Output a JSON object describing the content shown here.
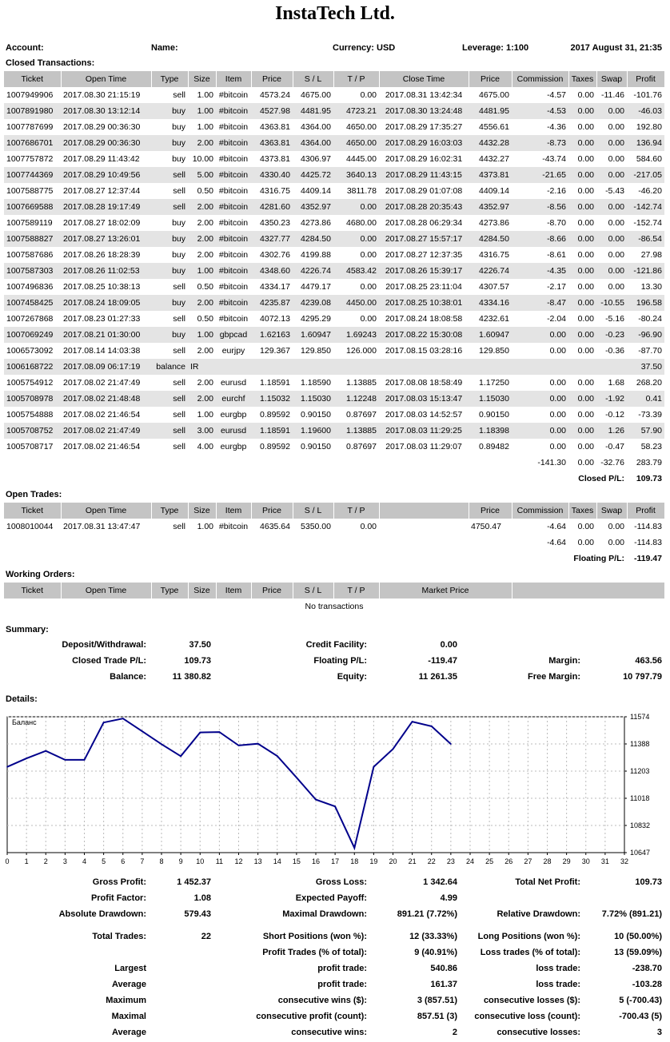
{
  "company": "InstaTech Ltd.",
  "header": {
    "account_label": "Account:",
    "name_label": "Name:",
    "currency_label": "Currency: USD",
    "leverage_label": "Leverage: 1:100",
    "date": "2017 August 31, 21:35"
  },
  "closed": {
    "title": "Closed Transactions:",
    "columns": [
      "Ticket",
      "Open Time",
      "Type",
      "Size",
      "Item",
      "Price",
      "S / L",
      "T / P",
      "Close Time",
      "Price",
      "Commission",
      "Taxes",
      "Swap",
      "Profit"
    ],
    "rows": [
      [
        "1007949906",
        "2017.08.30 21:15:19",
        "sell",
        "1.00",
        "#bitcoin",
        "4573.24",
        "4675.00",
        "0.00",
        "2017.08.31 13:42:34",
        "4675.00",
        "-4.57",
        "0.00",
        "-11.46",
        "-101.76"
      ],
      [
        "1007891980",
        "2017.08.30 13:12:14",
        "buy",
        "1.00",
        "#bitcoin",
        "4527.98",
        "4481.95",
        "4723.21",
        "2017.08.30 13:24:48",
        "4481.95",
        "-4.53",
        "0.00",
        "0.00",
        "-46.03"
      ],
      [
        "1007787699",
        "2017.08.29 00:36:30",
        "buy",
        "1.00",
        "#bitcoin",
        "4363.81",
        "4364.00",
        "4650.00",
        "2017.08.29 17:35:27",
        "4556.61",
        "-4.36",
        "0.00",
        "0.00",
        "192.80"
      ],
      [
        "1007686701",
        "2017.08.29 00:36:30",
        "buy",
        "2.00",
        "#bitcoin",
        "4363.81",
        "4364.00",
        "4650.00",
        "2017.08.29 16:03:03",
        "4432.28",
        "-8.73",
        "0.00",
        "0.00",
        "136.94"
      ],
      [
        "1007757872",
        "2017.08.29 11:43:42",
        "buy",
        "10.00",
        "#bitcoin",
        "4373.81",
        "4306.97",
        "4445.00",
        "2017.08.29 16:02:31",
        "4432.27",
        "-43.74",
        "0.00",
        "0.00",
        "584.60"
      ],
      [
        "1007744369",
        "2017.08.29 10:49:56",
        "sell",
        "5.00",
        "#bitcoin",
        "4330.40",
        "4425.72",
        "3640.13",
        "2017.08.29 11:43:15",
        "4373.81",
        "-21.65",
        "0.00",
        "0.00",
        "-217.05"
      ],
      [
        "1007588775",
        "2017.08.27 12:37:44",
        "sell",
        "0.50",
        "#bitcoin",
        "4316.75",
        "4409.14",
        "3811.78",
        "2017.08.29 01:07:08",
        "4409.14",
        "-2.16",
        "0.00",
        "-5.43",
        "-46.20"
      ],
      [
        "1007669588",
        "2017.08.28 19:17:49",
        "sell",
        "2.00",
        "#bitcoin",
        "4281.60",
        "4352.97",
        "0.00",
        "2017.08.28 20:35:43",
        "4352.97",
        "-8.56",
        "0.00",
        "0.00",
        "-142.74"
      ],
      [
        "1007589119",
        "2017.08.27 18:02:09",
        "buy",
        "2.00",
        "#bitcoin",
        "4350.23",
        "4273.86",
        "4680.00",
        "2017.08.28 06:29:34",
        "4273.86",
        "-8.70",
        "0.00",
        "0.00",
        "-152.74"
      ],
      [
        "1007588827",
        "2017.08.27 13:26:01",
        "buy",
        "2.00",
        "#bitcoin",
        "4327.77",
        "4284.50",
        "0.00",
        "2017.08.27 15:57:17",
        "4284.50",
        "-8.66",
        "0.00",
        "0.00",
        "-86.54"
      ],
      [
        "1007587686",
        "2017.08.26 18:28:39",
        "buy",
        "2.00",
        "#bitcoin",
        "4302.76",
        "4199.88",
        "0.00",
        "2017.08.27 12:37:35",
        "4316.75",
        "-8.61",
        "0.00",
        "0.00",
        "27.98"
      ],
      [
        "1007587303",
        "2017.08.26 11:02:53",
        "buy",
        "1.00",
        "#bitcoin",
        "4348.60",
        "4226.74",
        "4583.42",
        "2017.08.26 15:39:17",
        "4226.74",
        "-4.35",
        "0.00",
        "0.00",
        "-121.86"
      ],
      [
        "1007496836",
        "2017.08.25 10:38:13",
        "sell",
        "0.50",
        "#bitcoin",
        "4334.17",
        "4479.17",
        "0.00",
        "2017.08.25 23:11:04",
        "4307.57",
        "-2.17",
        "0.00",
        "0.00",
        "13.30"
      ],
      [
        "1007458425",
        "2017.08.24 18:09:05",
        "buy",
        "2.00",
        "#bitcoin",
        "4235.87",
        "4239.08",
        "4450.00",
        "2017.08.25 10:38:01",
        "4334.16",
        "-8.47",
        "0.00",
        "-10.55",
        "196.58"
      ],
      [
        "1007267868",
        "2017.08.23 01:27:33",
        "sell",
        "0.50",
        "#bitcoin",
        "4072.13",
        "4295.29",
        "0.00",
        "2017.08.24 18:08:58",
        "4232.61",
        "-2.04",
        "0.00",
        "-5.16",
        "-80.24"
      ],
      [
        "1007069249",
        "2017.08.21 01:30:00",
        "buy",
        "1.00",
        "gbpcad",
        "1.62163",
        "1.60947",
        "1.69243",
        "2017.08.22 15:30:08",
        "1.60947",
        "0.00",
        "0.00",
        "-0.23",
        "-96.90"
      ],
      [
        "1006573092",
        "2017.08.14 14:03:38",
        "sell",
        "2.00",
        "eurjpy",
        "129.367",
        "129.850",
        "126.000",
        "2017.08.15 03:28:16",
        "129.850",
        "0.00",
        "0.00",
        "-0.36",
        "-87.70"
      ],
      [
        "1006168722",
        "2017.08.09 06:17:19",
        "balance",
        "IR",
        "",
        "",
        "",
        "",
        "",
        "",
        "",
        "",
        "",
        "37.50"
      ],
      [
        "1005754912",
        "2017.08.02 21:47:49",
        "sell",
        "2.00",
        "eurusd",
        "1.18591",
        "1.18590",
        "1.13885",
        "2017.08.08 18:58:49",
        "1.17250",
        "0.00",
        "0.00",
        "1.68",
        "268.20"
      ],
      [
        "1005708978",
        "2017.08.02 21:48:48",
        "sell",
        "2.00",
        "eurchf",
        "1.15032",
        "1.15030",
        "1.12248",
        "2017.08.03 15:13:47",
        "1.15030",
        "0.00",
        "0.00",
        "-1.92",
        "0.41"
      ],
      [
        "1005754888",
        "2017.08.02 21:46:54",
        "sell",
        "1.00",
        "eurgbp",
        "0.89592",
        "0.90150",
        "0.87697",
        "2017.08.03 14:52:57",
        "0.90150",
        "0.00",
        "0.00",
        "-0.12",
        "-73.39"
      ],
      [
        "1005708752",
        "2017.08.02 21:47:49",
        "sell",
        "3.00",
        "eurusd",
        "1.18591",
        "1.19600",
        "1.13885",
        "2017.08.03 11:29:25",
        "1.18398",
        "0.00",
        "0.00",
        "1.26",
        "57.90"
      ],
      [
        "1005708717",
        "2017.08.02 21:46:54",
        "sell",
        "4.00",
        "eurgbp",
        "0.89592",
        "0.90150",
        "0.87697",
        "2017.08.03 11:29:07",
        "0.89482",
        "0.00",
        "0.00",
        "-0.47",
        "58.23"
      ]
    ],
    "totals": {
      "commission": "-141.30",
      "taxes": "0.00",
      "swap": "-32.76",
      "profit": "283.79"
    },
    "pl_label": "Closed P/L:",
    "pl_value": "109.73"
  },
  "open": {
    "title": "Open Trades:",
    "columns": [
      "Ticket",
      "Open Time",
      "Type",
      "Size",
      "Item",
      "Price",
      "S / L",
      "T / P",
      "",
      "Price",
      "Commission",
      "Taxes",
      "Swap",
      "Profit"
    ],
    "rows": [
      [
        "1008010044",
        "2017.08.31 13:47:47",
        "sell",
        "1.00",
        "#bitcoin",
        "4635.64",
        "5350.00",
        "0.00",
        "",
        "4750.47",
        "-4.64",
        "0.00",
        "0.00",
        "-114.83"
      ]
    ],
    "totals": {
      "commission": "-4.64",
      "taxes": "0.00",
      "swap": "0.00",
      "profit": "-114.83"
    },
    "pl_label": "Floating P/L:",
    "pl_value": "-119.47"
  },
  "working": {
    "title": "Working Orders:",
    "columns": [
      "Ticket",
      "Open Time",
      "Type",
      "Size",
      "Item",
      "Price",
      "S / L",
      "T / P",
      "Market Price",
      ""
    ],
    "empty": "No transactions"
  },
  "summary": {
    "title": "Summary:",
    "deposit_label": "Deposit/Withdrawal:",
    "deposit": "37.50",
    "credit_label": "Credit Facility:",
    "credit": "0.00",
    "closed_pl_label": "Closed Trade P/L:",
    "closed_pl": "109.73",
    "floating_label": "Floating P/L:",
    "floating": "-119.47",
    "margin_label": "Margin:",
    "margin": "463.56",
    "balance_label": "Balance:",
    "balance": "11 380.82",
    "equity_label": "Equity:",
    "equity": "11 261.35",
    "free_margin_label": "Free Margin:",
    "free_margin": "10 797.79"
  },
  "details": {
    "title": "Details:",
    "stats": [
      {
        "l1": "Gross Profit:",
        "v1": "1 452.37",
        "l2": "Gross Loss:",
        "v2": "1 342.64",
        "l3": "Total Net Profit:",
        "v3": "109.73"
      },
      {
        "l1": "Profit Factor:",
        "v1": "1.08",
        "l2": "Expected Payoff:",
        "v2": "4.99",
        "l3": "",
        "v3": ""
      },
      {
        "l1": "Absolute Drawdown:",
        "v1": "579.43",
        "l2": "Maximal Drawdown:",
        "v2": "891.21 (7.72%)",
        "l3": "Relative Drawdown:",
        "v3": "7.72% (891.21)"
      }
    ],
    "trades": [
      {
        "l1": "Total Trades:",
        "v1": "22",
        "l2": "Short Positions (won %):",
        "v2": "12 (33.33%)",
        "l3": "Long Positions (won %):",
        "v3": "10 (50.00%)"
      },
      {
        "l1": "",
        "v1": "",
        "l2": "Profit Trades (% of total):",
        "v2": "9 (40.91%)",
        "l3": "Loss trades (% of total):",
        "v3": "13 (59.09%)"
      },
      {
        "l1": "Largest",
        "v1": "",
        "l2": "profit trade:",
        "v2": "540.86",
        "l3": "loss trade:",
        "v3": "-238.70"
      },
      {
        "l1": "Average",
        "v1": "",
        "l2": "profit trade:",
        "v2": "161.37",
        "l3": "loss trade:",
        "v3": "-103.28"
      },
      {
        "l1": "Maximum",
        "v1": "",
        "l2": "consecutive wins ($):",
        "v2": "3 (857.51)",
        "l3": "consecutive losses ($):",
        "v3": "5 (-700.43)"
      },
      {
        "l1": "Maximal",
        "v1": "",
        "l2": "consecutive profit (count):",
        "v2": "857.51 (3)",
        "l3": "consecutive loss (count):",
        "v3": "-700.43 (5)"
      },
      {
        "l1": "Average",
        "v1": "",
        "l2": "consecutive wins:",
        "v2": "2",
        "l3": "consecutive losses:",
        "v3": "3"
      }
    ]
  },
  "chart_data": {
    "type": "line",
    "title": "Баланс",
    "x_ticks": [
      0,
      1,
      2,
      3,
      4,
      5,
      6,
      7,
      8,
      9,
      10,
      11,
      12,
      13,
      14,
      15,
      16,
      17,
      18,
      19,
      20,
      21,
      22,
      23,
      24,
      25,
      26,
      27,
      28,
      29,
      30,
      31,
      32
    ],
    "y_ticks": [
      "10647",
      "10832",
      "11018",
      "11203",
      "11388",
      "11574"
    ],
    "xlim": [
      0,
      32
    ],
    "ylim": [
      10647,
      11574
    ],
    "x": [
      0,
      1,
      2,
      3,
      4,
      5,
      6,
      7,
      8,
      9,
      10,
      11,
      12,
      13,
      14,
      15,
      16,
      17,
      18,
      19,
      20,
      21,
      22,
      23
    ],
    "y": [
      11232,
      11290,
      11341,
      11280,
      11280,
      11535,
      11562,
      11475,
      11387,
      11305,
      11467,
      11470,
      11378,
      11390,
      11306,
      11159,
      11009,
      10962,
      10679,
      11232,
      11354,
      11541,
      11509,
      11388
    ],
    "line_color": "#00008b",
    "grid": true
  }
}
